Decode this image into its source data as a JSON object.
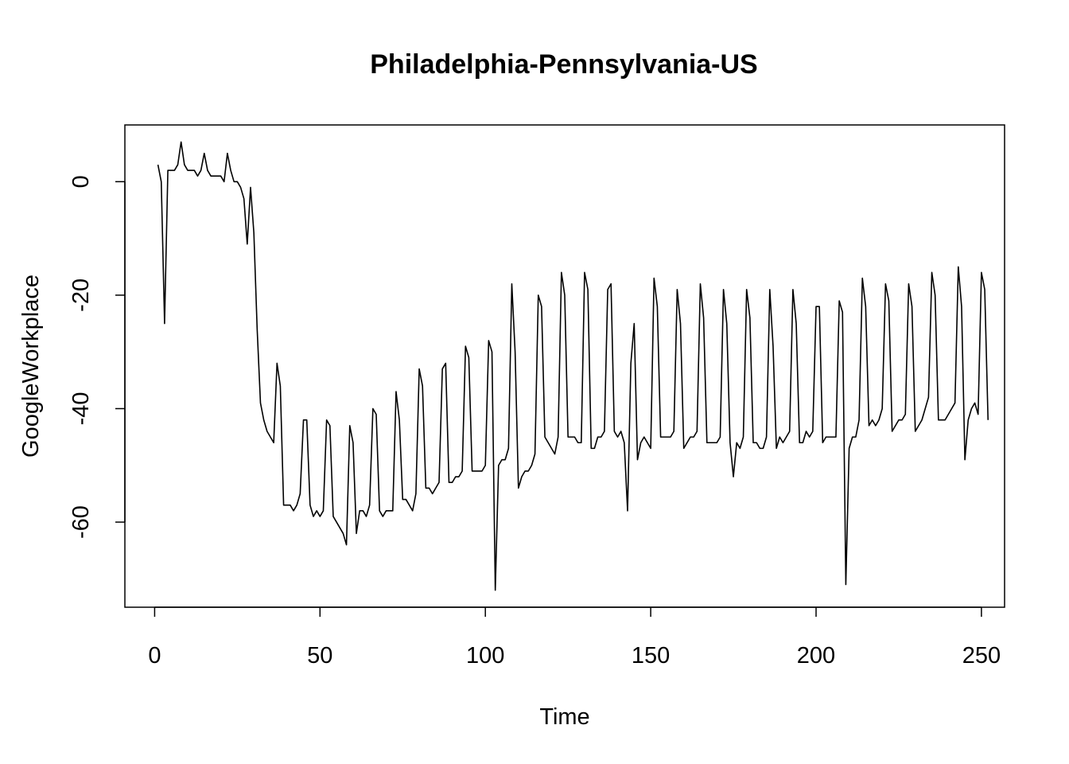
{
  "chart_data": {
    "type": "line",
    "title": "Philadelphia-Pennsylvania-US",
    "xlabel": "Time",
    "ylabel": "GoogleWorkplace",
    "xlim": [
      -9,
      257
    ],
    "ylim": [
      -75,
      10
    ],
    "x_ticks": [
      0,
      50,
      100,
      150,
      200,
      250
    ],
    "y_ticks": [
      0,
      -20,
      -40,
      -60
    ],
    "x_tick_labels": [
      "0",
      "50",
      "100",
      "150",
      "200",
      "250"
    ],
    "y_tick_labels": [
      "0",
      "-20",
      "-40",
      "-60"
    ],
    "grid": false,
    "line_color": "#000000",
    "series": [
      {
        "name": "GoogleWorkplace",
        "x_start": 1,
        "values": [
          3,
          0,
          -25,
          2,
          2,
          2,
          3,
          7,
          3,
          2,
          2,
          2,
          1,
          2,
          5,
          2,
          1,
          1,
          1,
          1,
          0,
          5,
          2,
          0,
          0,
          -1,
          -3,
          -11,
          -1,
          -9,
          -26,
          -39,
          -42,
          -44,
          -45,
          -46,
          -32,
          -36,
          -57,
          -57,
          -57,
          -58,
          -57,
          -55,
          -42,
          -42,
          -57,
          -59,
          -58,
          -59,
          -58,
          -42,
          -43,
          -59,
          -60,
          -61,
          -62,
          -64,
          -43,
          -46,
          -62,
          -58,
          -58,
          -59,
          -57,
          -40,
          -41,
          -58,
          -59,
          -58,
          -58,
          -58,
          -37,
          -42,
          -56,
          -56,
          -57,
          -58,
          -55,
          -33,
          -36,
          -54,
          -54,
          -55,
          -54,
          -53,
          -33,
          -32,
          -53,
          -53,
          -52,
          -52,
          -51,
          -29,
          -31,
          -51,
          -51,
          -51,
          -51,
          -50,
          -28,
          -30,
          -72,
          -50,
          -49,
          -49,
          -47,
          -18,
          -30,
          -54,
          -52,
          -51,
          -51,
          -50,
          -48,
          -20,
          -22,
          -45,
          -46,
          -47,
          -48,
          -45,
          -16,
          -20,
          -45,
          -45,
          -45,
          -46,
          -46,
          -16,
          -19,
          -47,
          -47,
          -45,
          -45,
          -44,
          -19,
          -18,
          -44,
          -45,
          -44,
          -46,
          -58,
          -32,
          -25,
          -49,
          -46,
          -45,
          -46,
          -47,
          -17,
          -22,
          -45,
          -45,
          -45,
          -45,
          -44,
          -19,
          -25,
          -47,
          -46,
          -45,
          -45,
          -44,
          -18,
          -24,
          -46,
          -46,
          -46,
          -46,
          -45,
          -19,
          -25,
          -46,
          -52,
          -46,
          -47,
          -45,
          -19,
          -24,
          -46,
          -46,
          -47,
          -47,
          -45,
          -19,
          -29,
          -47,
          -45,
          -46,
          -45,
          -44,
          -19,
          -25,
          -46,
          -46,
          -44,
          -45,
          -44,
          -22,
          -22,
          -46,
          -45,
          -45,
          -45,
          -45,
          -21,
          -23,
          -71,
          -47,
          -45,
          -45,
          -42,
          -17,
          -22,
          -43,
          -42,
          -43,
          -42,
          -40,
          -18,
          -21,
          -44,
          -43,
          -42,
          -42,
          -41,
          -18,
          -22,
          -44,
          -43,
          -42,
          -40,
          -38,
          -16,
          -20,
          -42,
          -42,
          -42,
          -41,
          -40,
          -39,
          -15,
          -22,
          -49,
          -42,
          -40,
          -39,
          -41,
          -16,
          -19,
          -42
        ]
      }
    ]
  }
}
